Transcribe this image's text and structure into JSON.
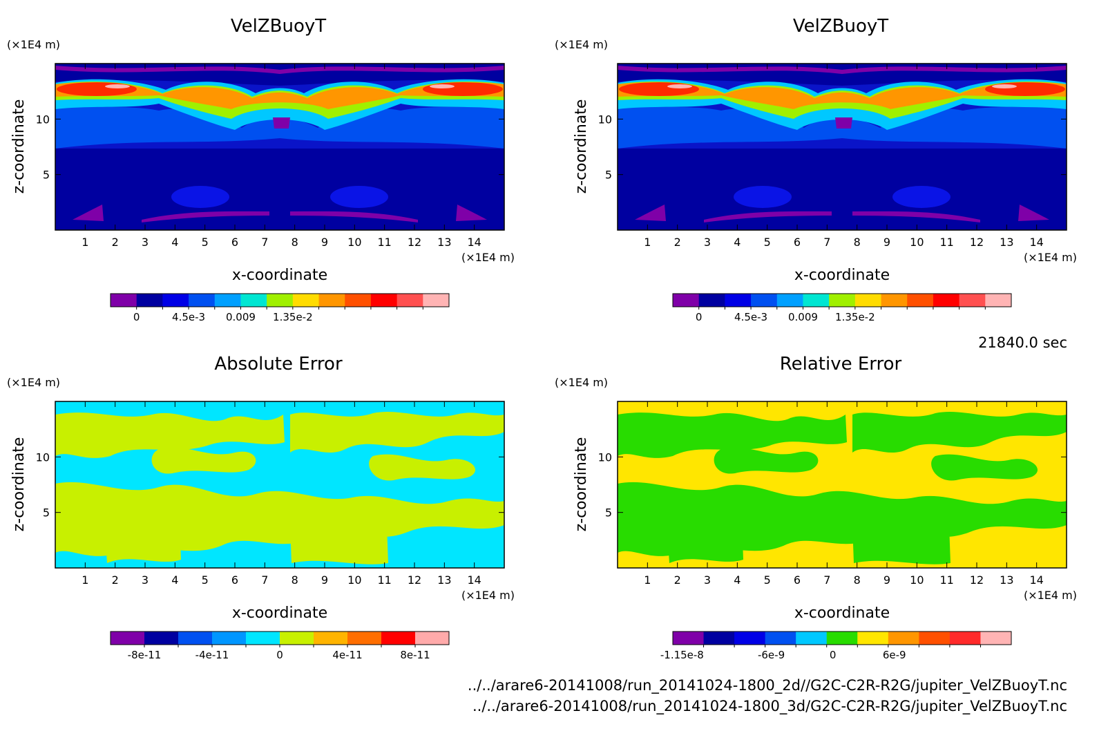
{
  "chart_data": [
    {
      "type": "heatmap",
      "title": "VelZBuoyT",
      "xlabel": "x-coordinate",
      "ylabel": "z-coordinate",
      "x_unit": "(×1E4 m)",
      "y_unit": "(×1E4 m)",
      "xlim": [
        0,
        15
      ],
      "ylim": [
        0,
        15
      ],
      "x_ticks": [
        "1",
        "2",
        "3",
        "4",
        "5",
        "6",
        "7",
        "8",
        "9",
        "10",
        "11",
        "12",
        "13",
        "14"
      ],
      "y_ticks": [
        "5",
        "10"
      ],
      "colorbar": {
        "colors": [
          "#7f00a8",
          "#0000a0",
          "#0000e6",
          "#0050f0",
          "#00a0ff",
          "#00e6d2",
          "#a0f000",
          "#ffdc00",
          "#ff9600",
          "#ff5000",
          "#ff0000",
          "#ff5050",
          "#ffb4b4"
        ],
        "tick_labels": [
          "0",
          "4.5e-3",
          "0.009",
          "1.35e-2"
        ]
      }
    },
    {
      "type": "heatmap",
      "title": "VelZBuoyT",
      "xlabel": "x-coordinate",
      "ylabel": "z-coordinate",
      "x_unit": "(×1E4 m)",
      "y_unit": "(×1E4 m)",
      "xlim": [
        0,
        15
      ],
      "ylim": [
        0,
        15
      ],
      "x_ticks": [
        "1",
        "2",
        "3",
        "4",
        "5",
        "6",
        "7",
        "8",
        "9",
        "10",
        "11",
        "12",
        "13",
        "14"
      ],
      "y_ticks": [
        "5",
        "10"
      ],
      "colorbar": {
        "colors": [
          "#7f00a8",
          "#0000a0",
          "#0000e6",
          "#0050f0",
          "#00a0ff",
          "#00e6d2",
          "#a0f000",
          "#ffdc00",
          "#ff9600",
          "#ff5000",
          "#ff0000",
          "#ff5050",
          "#ffb4b4"
        ],
        "tick_labels": [
          "0",
          "4.5e-3",
          "0.009",
          "1.35e-2"
        ]
      }
    },
    {
      "type": "heatmap",
      "title": "Absolute Error",
      "xlabel": "x-coordinate",
      "ylabel": "z-coordinate",
      "x_unit": "(×1E4 m)",
      "y_unit": "(×1E4 m)",
      "xlim": [
        0,
        15
      ],
      "ylim": [
        0,
        15
      ],
      "x_ticks": [
        "1",
        "2",
        "3",
        "4",
        "5",
        "6",
        "7",
        "8",
        "9",
        "10",
        "11",
        "12",
        "13",
        "14"
      ],
      "y_ticks": [
        "5",
        "10"
      ],
      "colorbar": {
        "colors": [
          "#7f00a8",
          "#0000a0",
          "#0050f0",
          "#0096ff",
          "#00e6ff",
          "#c8f000",
          "#ffb400",
          "#ff6e00",
          "#ff0000",
          "#ffaaaa"
        ],
        "tick_labels": [
          "-8e-11",
          "-4e-11",
          "0",
          "4e-11",
          "8e-11"
        ]
      }
    },
    {
      "type": "heatmap",
      "title": "Relative Error",
      "xlabel": "x-coordinate",
      "ylabel": "z-coordinate",
      "x_unit": "(×1E4 m)",
      "y_unit": "(×1E4 m)",
      "xlim": [
        0,
        15
      ],
      "ylim": [
        0,
        15
      ],
      "x_ticks": [
        "1",
        "2",
        "3",
        "4",
        "5",
        "6",
        "7",
        "8",
        "9",
        "10",
        "11",
        "12",
        "13",
        "14"
      ],
      "y_ticks": [
        "5",
        "10"
      ],
      "colorbar": {
        "colors": [
          "#7f00a8",
          "#0000a0",
          "#0000e6",
          "#0050f0",
          "#00c8ff",
          "#28dc00",
          "#ffe600",
          "#ff9600",
          "#ff5000",
          "#ff2a2a",
          "#ffb4b4"
        ],
        "tick_labels": [
          "-1.15e-8",
          "-6e-9",
          "0",
          "6e-9"
        ]
      }
    }
  ],
  "time_label": "21840.0 sec",
  "file_paths": [
    "../../arare6-20141008/run_20141024-1800_2d//G2C-C2R-R2G/jupiter_VelZBuoyT.nc",
    "../../arare6-20141008/run_20141024-1800_3d/G2C-C2R-R2G/jupiter_VelZBuoyT.nc"
  ]
}
